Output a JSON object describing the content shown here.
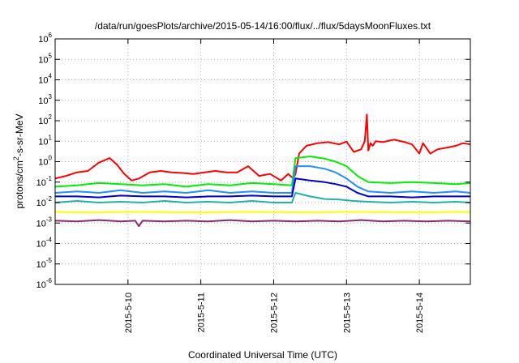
{
  "chart_data": {
    "type": "line",
    "title": "/data/run/goesPlots/archive/2015-05-14/16:00/flux/../flux/5daysMoonFluxes.txt",
    "xlabel": "Coordinated Universal Time (UTC)",
    "ylabel_parts": [
      "protons/cm",
      "2",
      "-s-sr-MeV"
    ],
    "x_unit": "days since 2015-05-09 00:00 UTC",
    "xlim": [
      0.0,
      5.7
    ],
    "ylim": [
      1e-06,
      1000000.0
    ],
    "yscale": "log",
    "grid": true,
    "legend": "none",
    "x_ticks": [
      {
        "value": 1.0,
        "label": "2015-5-10"
      },
      {
        "value": 2.0,
        "label": "2015-5-11"
      },
      {
        "value": 3.0,
        "label": "2015-5-12"
      },
      {
        "value": 4.0,
        "label": "2015-5-13"
      },
      {
        "value": 5.0,
        "label": "2015-5-14"
      }
    ],
    "y_ticks": [
      {
        "value": 1e-06,
        "base": "10",
        "exp": "-6"
      },
      {
        "value": 1e-05,
        "base": "10",
        "exp": "-5"
      },
      {
        "value": 0.0001,
        "base": "10",
        "exp": "-4"
      },
      {
        "value": 0.001,
        "base": "10",
        "exp": "-3"
      },
      {
        "value": 0.01,
        "base": "10",
        "exp": "-2"
      },
      {
        "value": 0.1,
        "base": "10",
        "exp": "-1"
      },
      {
        "value": 1.0,
        "base": "10",
        "exp": "0"
      },
      {
        "value": 10.0,
        "base": "10",
        "exp": "1"
      },
      {
        "value": 100.0,
        "base": "10",
        "exp": "2"
      },
      {
        "value": 1000.0,
        "base": "10",
        "exp": "3"
      },
      {
        "value": 10000.0,
        "base": "10",
        "exp": "4"
      },
      {
        "value": 100000.0,
        "base": "10",
        "exp": "5"
      },
      {
        "value": 1000000.0,
        "base": "10",
        "exp": "6"
      }
    ],
    "series": [
      {
        "color": "#ff0000",
        "x": [
          0.0,
          0.15,
          0.3,
          0.45,
          0.6,
          0.75,
          0.85,
          0.95,
          1.05,
          1.15,
          1.3,
          1.45,
          1.6,
          1.75,
          1.9,
          2.05,
          2.2,
          2.35,
          2.5,
          2.65,
          2.8,
          2.95,
          3.1,
          3.2,
          3.27,
          3.3,
          3.35,
          3.45,
          3.6,
          3.75,
          3.9,
          4.0,
          4.1,
          4.2,
          4.25,
          4.28,
          4.3,
          4.33,
          4.36,
          4.4,
          4.5,
          4.65,
          4.8,
          4.9,
          5.0,
          5.05,
          5.15,
          5.25,
          5.4,
          5.5,
          5.6,
          5.7
        ],
        "y": [
          0.15,
          0.2,
          0.3,
          0.35,
          0.9,
          1.5,
          0.7,
          0.25,
          0.12,
          0.15,
          0.3,
          0.35,
          0.3,
          0.28,
          0.25,
          0.3,
          0.35,
          0.3,
          0.3,
          0.6,
          0.2,
          0.25,
          0.12,
          0.25,
          0.15,
          0.25,
          2.5,
          6.0,
          8.0,
          9.0,
          7.0,
          9.5,
          3.0,
          4.0,
          10.0,
          200.0,
          3.5,
          8.0,
          6.0,
          10.0,
          9.0,
          12.0,
          9.0,
          7.0,
          2.5,
          8.0,
          2.5,
          4.0,
          5.0,
          6.0,
          8.0,
          7.0
        ]
      },
      {
        "color": "#00ee00",
        "x": [
          0.0,
          0.3,
          0.6,
          0.9,
          1.2,
          1.5,
          1.8,
          2.1,
          2.4,
          2.7,
          3.0,
          3.25,
          3.3,
          3.5,
          3.7,
          3.85,
          4.0,
          4.15,
          4.3,
          4.6,
          4.9,
          5.2,
          5.5,
          5.7
        ],
        "y": [
          0.06,
          0.07,
          0.09,
          0.08,
          0.07,
          0.08,
          0.06,
          0.08,
          0.07,
          0.09,
          0.08,
          0.07,
          1.5,
          1.8,
          1.4,
          1.0,
          0.6,
          0.2,
          0.1,
          0.09,
          0.1,
          0.09,
          0.08,
          0.09
        ]
      },
      {
        "color": "#1e90ff",
        "x": [
          0.0,
          0.3,
          0.6,
          0.9,
          1.2,
          1.5,
          1.8,
          2.1,
          2.4,
          2.7,
          3.0,
          3.25,
          3.3,
          3.5,
          3.7,
          3.85,
          4.0,
          4.15,
          4.3,
          4.6,
          4.9,
          5.2,
          5.5,
          5.7
        ],
        "y": [
          0.03,
          0.035,
          0.03,
          0.04,
          0.03,
          0.035,
          0.03,
          0.04,
          0.03,
          0.035,
          0.03,
          0.03,
          0.6,
          0.6,
          0.45,
          0.3,
          0.15,
          0.06,
          0.035,
          0.03,
          0.035,
          0.03,
          0.035,
          0.03
        ]
      },
      {
        "color": "#0000cd",
        "x": [
          0.0,
          0.3,
          0.6,
          0.9,
          1.2,
          1.5,
          1.8,
          2.1,
          2.4,
          2.7,
          3.0,
          3.25,
          3.3,
          3.5,
          3.7,
          3.85,
          4.0,
          4.15,
          4.3,
          4.6,
          4.9,
          5.2,
          5.5,
          5.7
        ],
        "y": [
          0.02,
          0.02,
          0.018,
          0.022,
          0.02,
          0.02,
          0.018,
          0.02,
          0.02,
          0.022,
          0.02,
          0.02,
          0.15,
          0.12,
          0.1,
          0.08,
          0.06,
          0.03,
          0.02,
          0.02,
          0.018,
          0.02,
          0.02,
          0.02
        ]
      },
      {
        "color": "#20b2aa",
        "x": [
          0.0,
          0.3,
          0.6,
          0.9,
          1.2,
          1.5,
          1.8,
          2.1,
          2.4,
          2.7,
          3.0,
          3.25,
          3.3,
          3.5,
          3.7,
          3.9,
          4.1,
          4.3,
          4.6,
          4.9,
          5.2,
          5.5,
          5.7
        ],
        "y": [
          0.01,
          0.012,
          0.01,
          0.011,
          0.01,
          0.012,
          0.01,
          0.011,
          0.01,
          0.012,
          0.01,
          0.01,
          0.03,
          0.02,
          0.015,
          0.014,
          0.012,
          0.011,
          0.01,
          0.011,
          0.01,
          0.011,
          0.01
        ]
      },
      {
        "color": "#ffff00",
        "x": [
          0.0,
          0.5,
          1.0,
          1.5,
          2.0,
          2.5,
          3.0,
          3.5,
          4.0,
          4.5,
          5.0,
          5.5,
          5.7
        ],
        "y": [
          0.0035,
          0.0033,
          0.0035,
          0.0034,
          0.0033,
          0.0035,
          0.0034,
          0.0033,
          0.0035,
          0.0034,
          0.0033,
          0.0035,
          0.0034
        ]
      },
      {
        "color": "#8b2c6b",
        "x": [
          0.0,
          0.3,
          0.6,
          0.9,
          1.1,
          1.15,
          1.2,
          1.5,
          1.8,
          2.1,
          2.4,
          2.7,
          3.0,
          3.3,
          3.6,
          3.9,
          4.2,
          4.5,
          4.8,
          5.1,
          5.4,
          5.7
        ],
        "y": [
          0.0013,
          0.0012,
          0.0014,
          0.0012,
          0.0013,
          0.0007,
          0.0013,
          0.0012,
          0.0013,
          0.0012,
          0.0014,
          0.0012,
          0.0013,
          0.0012,
          0.0013,
          0.0012,
          0.0014,
          0.0012,
          0.0013,
          0.0012,
          0.0013,
          0.0012
        ]
      }
    ]
  }
}
